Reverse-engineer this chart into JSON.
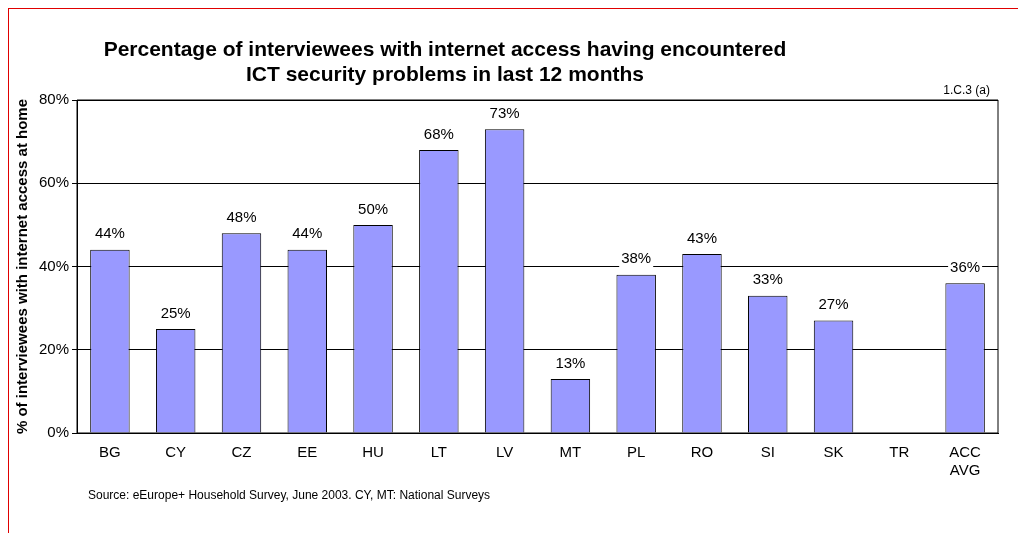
{
  "chart_data": {
    "type": "bar",
    "title": "Percentage of interviewees with internet access having encountered ICT security problems in last 12 months",
    "ylabel": "% of interviewees with internet access at home",
    "categories": [
      "BG",
      "CY",
      "CZ",
      "EE",
      "HU",
      "LT",
      "LV",
      "MT",
      "PL",
      "RO",
      "SI",
      "SK",
      "TR",
      "ACC AVG"
    ],
    "values": [
      44,
      25,
      48,
      44,
      50,
      68,
      73,
      13,
      38,
      43,
      33,
      27,
      null,
      36
    ],
    "value_labels": [
      "44%",
      "25%",
      "48%",
      "44%",
      "50%",
      "68%",
      "73%",
      "13%",
      "38%",
      "43%",
      "33%",
      "27%",
      null,
      "36%"
    ],
    "color": "#9999ff",
    "ylim": [
      0,
      80
    ],
    "yticks": [
      {
        "value": 0,
        "label": "0%"
      },
      {
        "value": 20,
        "label": "20%"
      },
      {
        "value": 40,
        "label": "40%"
      },
      {
        "value": 60,
        "label": "60%"
      },
      {
        "value": 80,
        "label": "80%"
      }
    ],
    "grid": "y",
    "legend": false,
    "annotations": [
      "1.C.3 (a)",
      "Source: eEurope+ Household Survey, June 2003. CY, MT: National Surveys"
    ]
  }
}
